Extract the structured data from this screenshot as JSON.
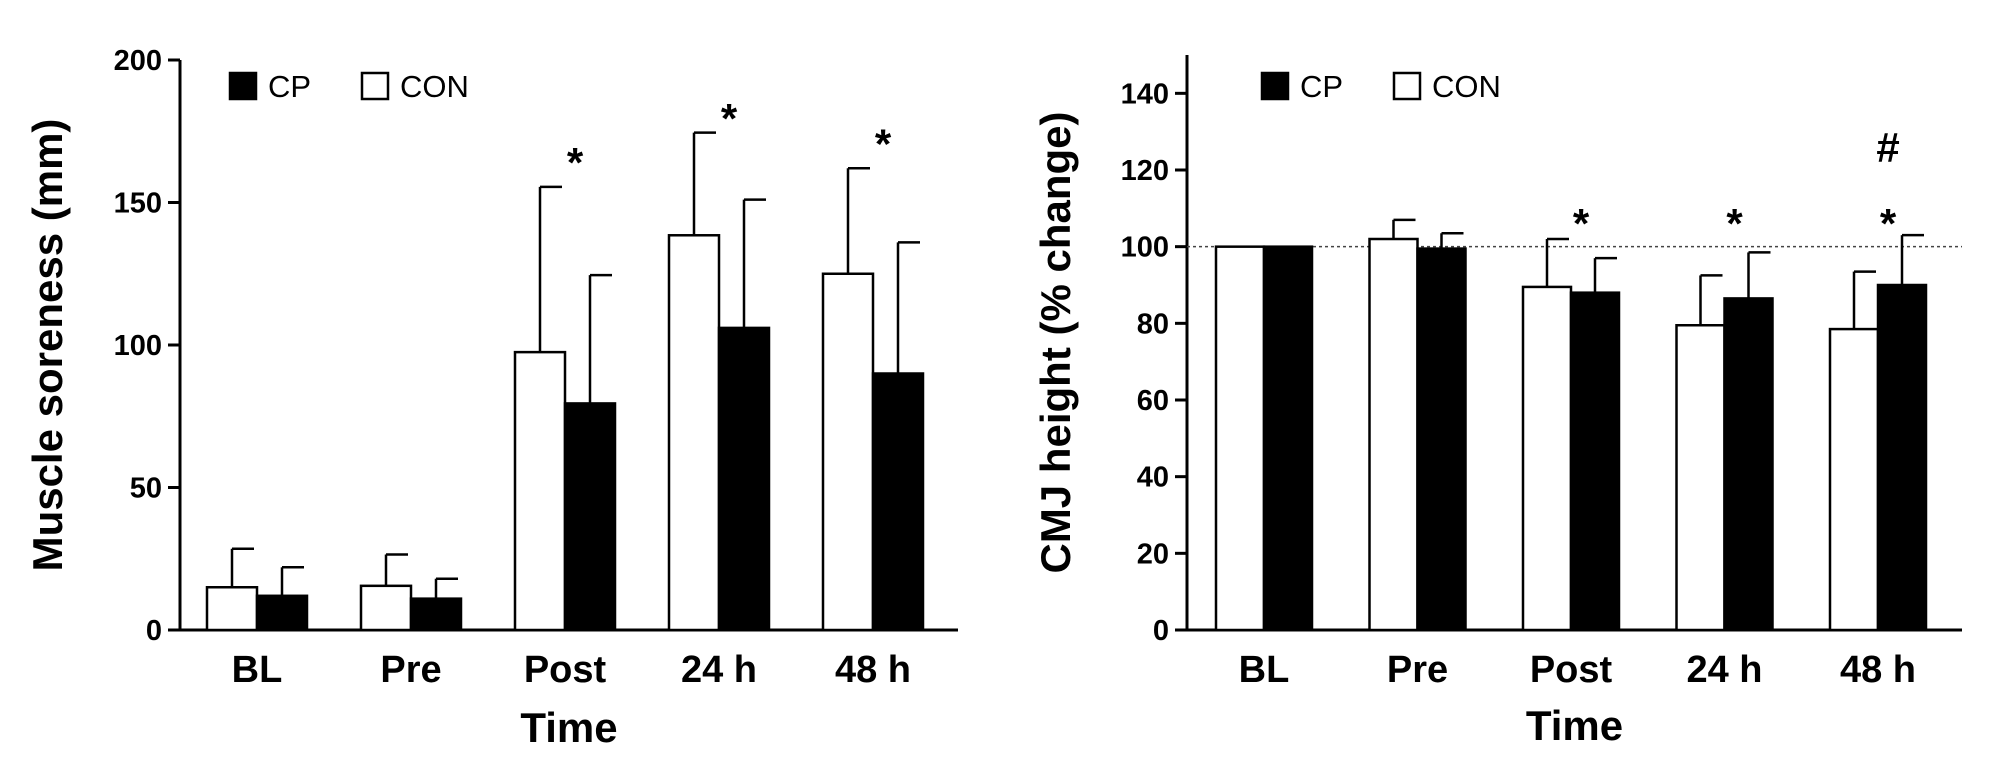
{
  "chart_data": [
    {
      "type": "bar",
      "ylabel": "Muscle soreness (mm)",
      "xlabel": "Time",
      "ylim": [
        0,
        200
      ],
      "yticks": [
        0,
        50,
        100,
        150,
        200
      ],
      "categories": [
        "BL",
        "Pre",
        "Post",
        "24 h",
        "48 h"
      ],
      "legend": {
        "placement": "top-left",
        "entries": [
          "CP",
          "CON"
        ]
      },
      "series": [
        {
          "name": "CON",
          "fill": "#ffffff",
          "values": [
            15,
            15.5,
            97.5,
            138.5,
            125
          ],
          "errors": [
            13.5,
            11,
            58,
            36,
            37
          ]
        },
        {
          "name": "CP",
          "fill": "#000000",
          "values": [
            12,
            11,
            79.5,
            106,
            90
          ],
          "errors": [
            10,
            7,
            45,
            45,
            46
          ]
        }
      ],
      "annotations": [
        {
          "category": "Post",
          "texts": [
            "*"
          ]
        },
        {
          "category": "24 h",
          "texts": [
            "*"
          ]
        },
        {
          "category": "48 h",
          "texts": [
            "*"
          ]
        }
      ],
      "reference_line": null
    },
    {
      "type": "bar",
      "ylabel": "CMJ height (% change)",
      "xlabel": "Time",
      "ylim": [
        0,
        150
      ],
      "yticks": [
        0,
        20,
        40,
        60,
        80,
        100,
        120,
        140
      ],
      "categories": [
        "BL",
        "Pre",
        "Post",
        "24 h",
        "48 h"
      ],
      "legend": {
        "placement": "top-left",
        "entries": [
          "CP",
          "CON"
        ]
      },
      "series": [
        {
          "name": "CON",
          "fill": "#ffffff",
          "values": [
            100,
            102,
            89.5,
            79.5,
            78.5
          ],
          "errors": [
            0,
            5,
            12.5,
            13,
            15
          ]
        },
        {
          "name": "CP",
          "fill": "#000000",
          "values": [
            100,
            99.5,
            88,
            86.5,
            90
          ],
          "errors": [
            0,
            4,
            9,
            12,
            13
          ]
        }
      ],
      "annotations": [
        {
          "category": "Post",
          "texts": [
            "*"
          ]
        },
        {
          "category": "24 h",
          "texts": [
            "*"
          ]
        },
        {
          "category": "48 h",
          "texts": [
            "*",
            "#"
          ]
        }
      ],
      "reference_line": 100
    }
  ]
}
